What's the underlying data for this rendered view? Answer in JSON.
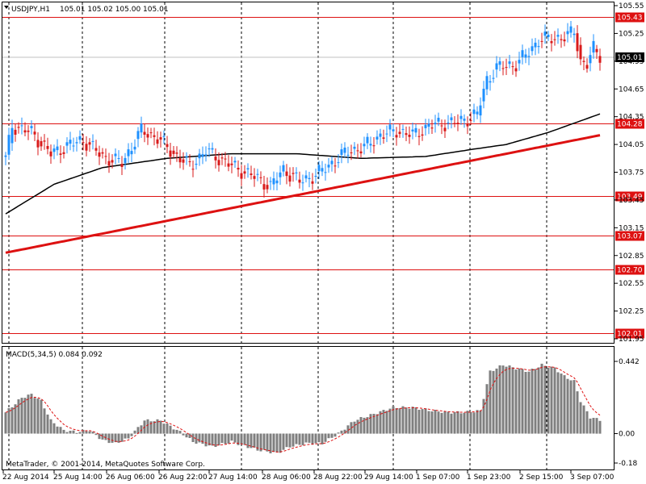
{
  "header": {
    "symbol": "USDJPY,H1",
    "ohlc": "105.01 105.02 105.00 105.01"
  },
  "macd_header": "MACD(5,34,5) 0.084 0.092",
  "copyright": "MetaTrader, © 2001-2014, MetaQuotes Software Corp.",
  "colors": {
    "bull": "#1e90ff",
    "bear": "#d91a1a",
    "ma_fast": "#000000",
    "ma_slow": "#dd1111",
    "level": "#dd1111",
    "grid": "#000000",
    "macd_hist": "#7f7f7f",
    "macd_signal": "#dd1111"
  },
  "chart_data": {
    "type": "candlestick",
    "instrument": "USDJPY",
    "timeframe": "H1",
    "price_axis": {
      "ylim": [
        101.95,
        105.55
      ],
      "ticks": [
        "105.55",
        "105.25",
        "104.95",
        "104.65",
        "104.35",
        "104.05",
        "103.75",
        "103.45",
        "103.15",
        "102.85",
        "102.55",
        "102.25",
        "101.95"
      ]
    },
    "current_price": "105.01",
    "levels": [
      "105.43",
      "104.28",
      "103.49",
      "103.07",
      "102.70",
      "102.01"
    ],
    "time_labels": [
      "22 Aug 2014",
      "25 Aug 14:00",
      "26 Aug 06:00",
      "26 Aug 22:00",
      "27 Aug 14:00",
      "28 Aug 06:00",
      "28 Aug 22:00",
      "29 Aug 14:00",
      "1 Sep 07:00",
      "1 Sep 23:00",
      "2 Sep 15:00",
      "3 Sep 07:00"
    ],
    "grid": "vertical dotted",
    "anchors": [
      {
        "i": 0,
        "c": 103.9
      },
      {
        "i": 2,
        "c": 104.25
      },
      {
        "i": 8,
        "c": 104.18
      },
      {
        "i": 14,
        "c": 103.95
      },
      {
        "i": 20,
        "c": 104.05
      },
      {
        "i": 24,
        "c": 104.1
      },
      {
        "i": 30,
        "c": 103.92
      },
      {
        "i": 36,
        "c": 103.85
      },
      {
        "i": 42,
        "c": 104.2
      },
      {
        "i": 47,
        "c": 104.12
      },
      {
        "i": 52,
        "c": 103.95
      },
      {
        "i": 57,
        "c": 103.82
      },
      {
        "i": 62,
        "c": 103.98
      },
      {
        "i": 66,
        "c": 103.9
      },
      {
        "i": 71,
        "c": 103.8
      },
      {
        "i": 76,
        "c": 103.72
      },
      {
        "i": 82,
        "c": 103.6
      },
      {
        "i": 86,
        "c": 103.78
      },
      {
        "i": 91,
        "c": 103.65
      },
      {
        "i": 96,
        "c": 103.72
      },
      {
        "i": 101,
        "c": 103.85
      },
      {
        "i": 106,
        "c": 103.98
      },
      {
        "i": 111,
        "c": 104.02
      },
      {
        "i": 116,
        "c": 104.15
      },
      {
        "i": 121,
        "c": 104.2
      },
      {
        "i": 126,
        "c": 104.15
      },
      {
        "i": 131,
        "c": 104.25
      },
      {
        "i": 136,
        "c": 104.28
      },
      {
        "i": 141,
        "c": 104.3
      },
      {
        "i": 146,
        "c": 104.38
      },
      {
        "i": 149,
        "c": 104.75
      },
      {
        "i": 152,
        "c": 104.88
      },
      {
        "i": 158,
        "c": 104.92
      },
      {
        "i": 162,
        "c": 105.05
      },
      {
        "i": 165,
        "c": 105.18
      },
      {
        "i": 170,
        "c": 105.2
      },
      {
        "i": 174,
        "c": 105.22
      },
      {
        "i": 176,
        "c": 105.28
      },
      {
        "i": 178,
        "c": 104.95
      },
      {
        "i": 180,
        "c": 104.92
      },
      {
        "i": 182,
        "c": 105.08
      },
      {
        "i": 184,
        "c": 105.01
      }
    ],
    "ma_fast_points": [
      {
        "i": 0,
        "v": 103.3
      },
      {
        "i": 15,
        "v": 103.62
      },
      {
        "i": 30,
        "v": 103.8
      },
      {
        "i": 50,
        "v": 103.9
      },
      {
        "i": 70,
        "v": 103.95
      },
      {
        "i": 90,
        "v": 103.95
      },
      {
        "i": 110,
        "v": 103.9
      },
      {
        "i": 130,
        "v": 103.92
      },
      {
        "i": 145,
        "v": 104.0
      },
      {
        "i": 155,
        "v": 104.05
      },
      {
        "i": 168,
        "v": 104.18
      },
      {
        "i": 184,
        "v": 104.38
      }
    ],
    "ma_slow_points": [
      {
        "i": 0,
        "v": 102.88
      },
      {
        "i": 184,
        "v": 104.15
      }
    ],
    "macd": {
      "ylim": [
        -0.18,
        0.442
      ],
      "ticks": [
        "0.442",
        "0.00",
        "-0.18"
      ],
      "anchors": [
        {
          "i": 0,
          "v": 0.13
        },
        {
          "i": 5,
          "v": 0.22
        },
        {
          "i": 8,
          "v": 0.24
        },
        {
          "i": 11,
          "v": 0.2
        },
        {
          "i": 14,
          "v": 0.08
        },
        {
          "i": 18,
          "v": 0.02
        },
        {
          "i": 22,
          "v": 0.01
        },
        {
          "i": 26,
          "v": 0.02
        },
        {
          "i": 30,
          "v": -0.04
        },
        {
          "i": 34,
          "v": -0.06
        },
        {
          "i": 38,
          "v": -0.03
        },
        {
          "i": 43,
          "v": 0.08
        },
        {
          "i": 48,
          "v": 0.08
        },
        {
          "i": 54,
          "v": 0.01
        },
        {
          "i": 58,
          "v": -0.05
        },
        {
          "i": 64,
          "v": -0.08
        },
        {
          "i": 70,
          "v": -0.05
        },
        {
          "i": 78,
          "v": -0.1
        },
        {
          "i": 84,
          "v": -0.12
        },
        {
          "i": 88,
          "v": -0.08
        },
        {
          "i": 93,
          "v": -0.06
        },
        {
          "i": 98,
          "v": -0.06
        },
        {
          "i": 103,
          "v": 0.0
        },
        {
          "i": 108,
          "v": 0.08
        },
        {
          "i": 114,
          "v": 0.12
        },
        {
          "i": 120,
          "v": 0.16
        },
        {
          "i": 126,
          "v": 0.16
        },
        {
          "i": 132,
          "v": 0.14
        },
        {
          "i": 137,
          "v": 0.13
        },
        {
          "i": 142,
          "v": 0.13
        },
        {
          "i": 147,
          "v": 0.14
        },
        {
          "i": 150,
          "v": 0.38
        },
        {
          "i": 154,
          "v": 0.42
        },
        {
          "i": 158,
          "v": 0.4
        },
        {
          "i": 162,
          "v": 0.38
        },
        {
          "i": 166,
          "v": 0.42
        },
        {
          "i": 170,
          "v": 0.4
        },
        {
          "i": 173,
          "v": 0.35
        },
        {
          "i": 176,
          "v": 0.32
        },
        {
          "i": 178,
          "v": 0.2
        },
        {
          "i": 181,
          "v": 0.1
        },
        {
          "i": 184,
          "v": 0.084
        }
      ]
    }
  }
}
